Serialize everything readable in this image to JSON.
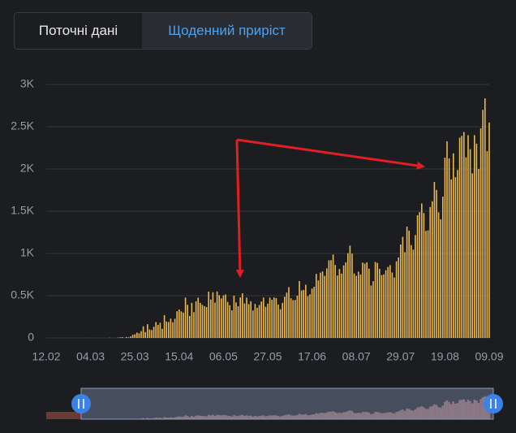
{
  "tabs": [
    "Поточні дані",
    "Щоденний приріст"
  ],
  "chart_data": {
    "type": "bar",
    "color": "#eab84e",
    "grid": true,
    "ylim": [
      0,
      3000
    ],
    "yticks": [
      0,
      {
        "value": 500,
        "label": "0.5K"
      },
      {
        "value": 1000,
        "label": "1K"
      },
      {
        "value": 1500,
        "label": "1.5K"
      },
      {
        "value": 2000,
        "label": "2K"
      },
      {
        "value": 2500,
        "label": "2.5K"
      },
      {
        "value": 3000,
        "label": "3K"
      }
    ],
    "categories": [
      "12.02",
      null,
      null,
      null,
      null,
      null,
      null,
      null,
      null,
      null,
      null,
      null,
      null,
      null,
      null,
      null,
      null,
      null,
      null,
      null,
      null,
      "04.03",
      null,
      null,
      null,
      null,
      null,
      null,
      null,
      null,
      null,
      null,
      null,
      null,
      null,
      null,
      null,
      null,
      null,
      null,
      null,
      null,
      "25.03",
      null,
      null,
      null,
      null,
      null,
      null,
      null,
      null,
      null,
      null,
      null,
      null,
      null,
      null,
      null,
      null,
      null,
      null,
      null,
      null,
      "15.04",
      null,
      null,
      null,
      null,
      null,
      null,
      null,
      null,
      null,
      null,
      null,
      null,
      null,
      null,
      null,
      null,
      null,
      null,
      null,
      null,
      "06.05",
      null,
      null,
      null,
      null,
      null,
      null,
      null,
      null,
      null,
      null,
      null,
      null,
      null,
      null,
      null,
      null,
      null,
      null,
      null,
      null,
      "27.05",
      null,
      null,
      null,
      null,
      null,
      null,
      null,
      null,
      null,
      null,
      null,
      null,
      null,
      null,
      null,
      null,
      null,
      null,
      null,
      null,
      "17.06",
      null,
      null,
      null,
      null,
      null,
      null,
      null,
      null,
      null,
      null,
      null,
      null,
      null,
      null,
      null,
      null,
      null,
      null,
      null,
      null,
      "08.07",
      null,
      null,
      null,
      null,
      null,
      null,
      null,
      null,
      null,
      null,
      null,
      null,
      null,
      null,
      null,
      null,
      null,
      null,
      null,
      null,
      "29.07",
      null,
      null,
      null,
      null,
      null,
      null,
      null,
      null,
      null,
      null,
      null,
      null,
      null,
      null,
      null,
      null,
      null,
      null,
      null,
      null,
      "19.08",
      null,
      null,
      null,
      null,
      null,
      null,
      null,
      null,
      null,
      null,
      null,
      null,
      null,
      null,
      null,
      null,
      null,
      null,
      null,
      null,
      "09.09"
    ],
    "values": [
      0,
      0,
      0,
      0,
      0,
      0,
      0,
      0,
      0,
      0,
      0,
      0,
      0,
      0,
      0,
      0,
      0,
      0,
      0,
      0,
      1,
      0,
      0,
      0,
      0,
      0,
      0,
      0,
      0,
      0,
      2,
      0,
      0,
      1,
      4,
      7,
      10,
      2,
      12,
      7,
      18,
      37,
      43,
      63,
      55,
      80,
      138,
      70,
      163,
      100,
      93,
      132,
      188,
      154,
      180,
      108,
      270,
      195,
      189,
      229,
      185,
      227,
      316,
      336,
      314,
      300,
      478,
      392,
      261,
      416,
      305,
      433,
      477,
      415,
      392,
      376,
      366,
      548,
      455,
      540,
      418,
      550,
      507,
      468,
      504,
      515,
      427,
      387,
      327,
      501,
      421,
      375,
      480,
      528,
      408,
      477,
      400,
      434,
      325,
      402,
      357,
      390,
      432,
      478,
      369,
      406,
      477,
      453,
      479,
      471,
      395,
      340,
      415,
      488,
      537,
      601,
      470,
      448,
      450,
      500,
      674,
      562,
      568,
      630,
      495,
      516,
      584,
      606,
      758,
      681,
      773,
      787,
      735,
      823,
      919,
      920,
      987,
      864,
      740,
      816,
      762,
      859,
      895,
      1002,
      1093,
      998,
      763,
      735,
      785,
      751,
      892,
      880,
      895,
      820,
      621,
      672,
      900,
      888,
      818,
      743,
      752,
      801,
      840,
      862,
      774,
      715,
      907,
      953,
      1106,
      1197,
      1014,
      1318,
      1271,
      1100,
      1045,
      1218,
      1453,
      1489,
      1592,
      1478,
      1267,
      1274,
      1550,
      1617,
      1847,
      1752,
      1487,
      1405,
      1672,
      2134,
      2328,
      2125,
      1876,
      2185,
      1902,
      1988,
      2371,
      2392,
      2438,
      2137,
      2400,
      2234,
      1948,
      2400,
      2300,
      2000,
      2480,
      2700,
      2836,
      2211,
      2550
    ]
  }
}
